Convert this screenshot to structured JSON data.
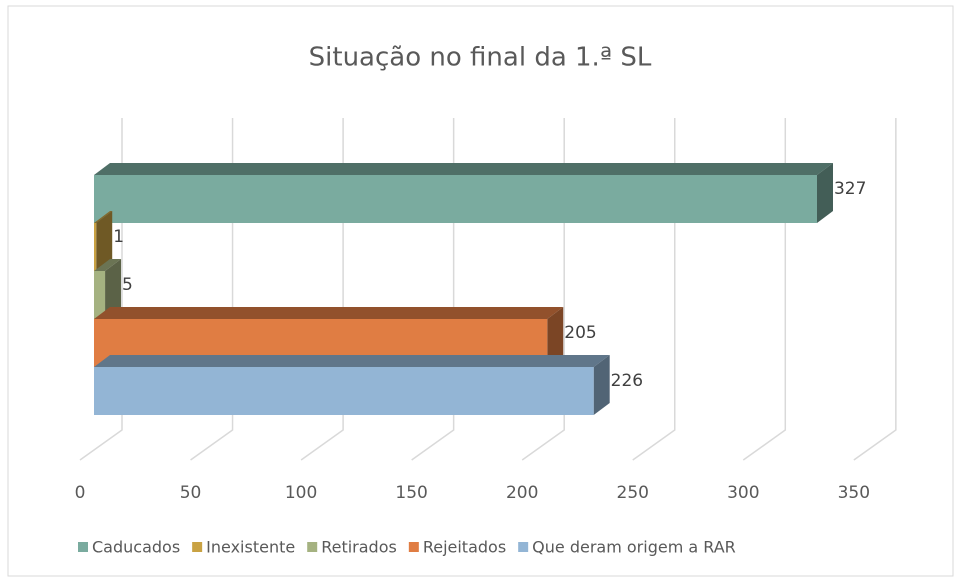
{
  "chart_data": {
    "type": "bar",
    "orientation": "horizontal",
    "3d": true,
    "title": "Situação no final da 1.ª SL",
    "series": [
      {
        "name": "Caducados",
        "color": "#7aab9f",
        "values": [
          327
        ]
      },
      {
        "name": "Inexistente",
        "color": "#c9a243",
        "values": [
          1
        ]
      },
      {
        "name": "Retirados",
        "color": "#a5b281",
        "values": [
          5
        ]
      },
      {
        "name": "Rejeitados",
        "color": "#e07d43",
        "values": [
          205
        ]
      },
      {
        "name": "Que deram origem a RAR",
        "color": "#93b5d5",
        "values": [
          226
        ]
      }
    ],
    "xlim": [
      0,
      350
    ],
    "xticks": [
      0,
      50,
      100,
      150,
      200,
      250,
      300,
      350
    ],
    "grid": true,
    "legend": "bottom"
  }
}
